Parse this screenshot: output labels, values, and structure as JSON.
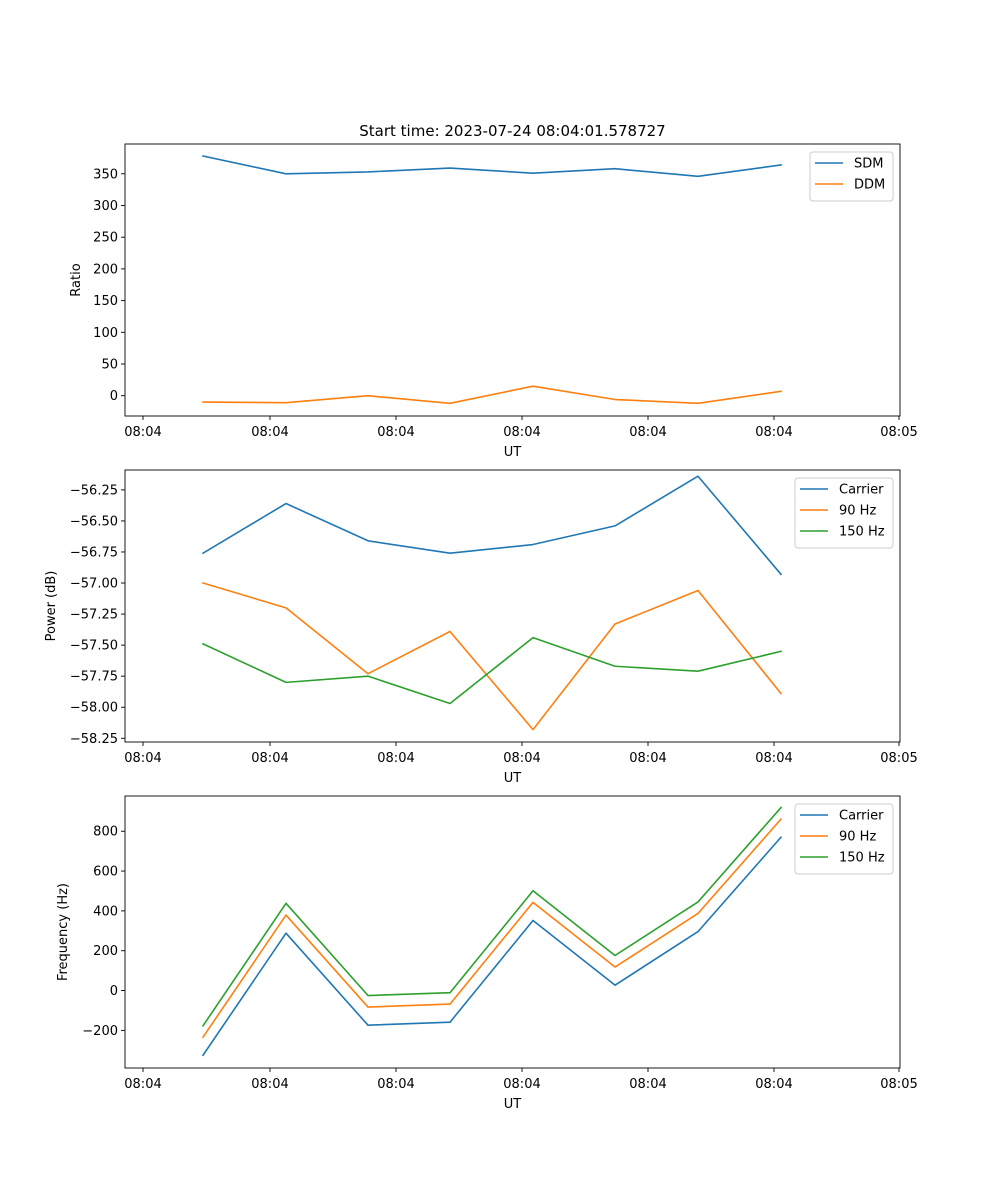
{
  "chart_data": [
    {
      "type": "line",
      "title": "Start time: 2023-07-24 08:04:01.578727",
      "xlabel": "UT",
      "ylabel": "Ratio",
      "x_tick_labels": [
        "08:04",
        "08:04",
        "08:04",
        "08:04",
        "08:04",
        "08:04",
        "08:05"
      ],
      "y_ticks": [
        0,
        50,
        100,
        150,
        200,
        250,
        300,
        350
      ],
      "y_tick_labels": [
        "0",
        "50",
        "100",
        "150",
        "200",
        "250",
        "300",
        "350"
      ],
      "ylim": [
        -32,
        397
      ],
      "legend_position": "upper right",
      "series": [
        {
          "name": "SDM",
          "color": "#1f77b4",
          "values": [
            378,
            350,
            353,
            359,
            351,
            358,
            346,
            364
          ]
        },
        {
          "name": "DDM",
          "color": "#ff7f0e",
          "values": [
            -10,
            -11,
            0,
            -12,
            15,
            -6,
            -12,
            7
          ]
        }
      ]
    },
    {
      "type": "line",
      "title": "",
      "xlabel": "UT",
      "ylabel": "Power (dB)",
      "x_tick_labels": [
        "08:04",
        "08:04",
        "08:04",
        "08:04",
        "08:04",
        "08:04",
        "08:05"
      ],
      "y_ticks": [
        -58.25,
        -58.0,
        -57.75,
        -57.5,
        -57.25,
        -57.0,
        -56.75,
        -56.5,
        -56.25
      ],
      "y_tick_labels": [
        "−58.25",
        "−58.00",
        "−57.75",
        "−57.50",
        "−57.25",
        "−57.00",
        "−56.75",
        "−56.50",
        "−56.25"
      ],
      "ylim": [
        -58.28,
        -56.09
      ],
      "legend_position": "upper right",
      "series": [
        {
          "name": "Carrier",
          "color": "#1f77b4",
          "values": [
            -56.76,
            -56.36,
            -56.66,
            -56.76,
            -56.69,
            -56.54,
            -56.14,
            -56.93
          ]
        },
        {
          "name": "90 Hz",
          "color": "#ff7f0e",
          "values": [
            -57.0,
            -57.2,
            -57.73,
            -57.39,
            -58.18,
            -57.33,
            -57.06,
            -57.89
          ]
        },
        {
          "name": "150 Hz",
          "color": "#2ca02c",
          "values": [
            -57.49,
            -57.8,
            -57.75,
            -57.97,
            -57.44,
            -57.67,
            -57.71,
            -57.55
          ]
        }
      ]
    },
    {
      "type": "line",
      "title": "",
      "xlabel": "UT",
      "ylabel": "Frequency (Hz)",
      "x_tick_labels": [
        "08:04",
        "08:04",
        "08:04",
        "08:04",
        "08:04",
        "08:04",
        "08:05"
      ],
      "y_ticks": [
        -200,
        0,
        200,
        400,
        600,
        800
      ],
      "y_tick_labels": [
        "−200",
        "0",
        "200",
        "400",
        "600",
        "800"
      ],
      "ylim": [
        -389,
        977
      ],
      "legend_position": "upper right",
      "series": [
        {
          "name": "Carrier",
          "color": "#1f77b4",
          "values": [
            -325,
            288,
            -174,
            -159,
            352,
            27,
            296,
            770
          ]
        },
        {
          "name": "90 Hz",
          "color": "#ff7f0e",
          "values": [
            -234,
            379,
            -83,
            -68,
            443,
            118,
            387,
            861
          ]
        },
        {
          "name": "150 Hz",
          "color": "#2ca02c",
          "values": [
            -177,
            438,
            -25,
            -11,
            501,
            176,
            445,
            919
          ]
        }
      ]
    }
  ]
}
